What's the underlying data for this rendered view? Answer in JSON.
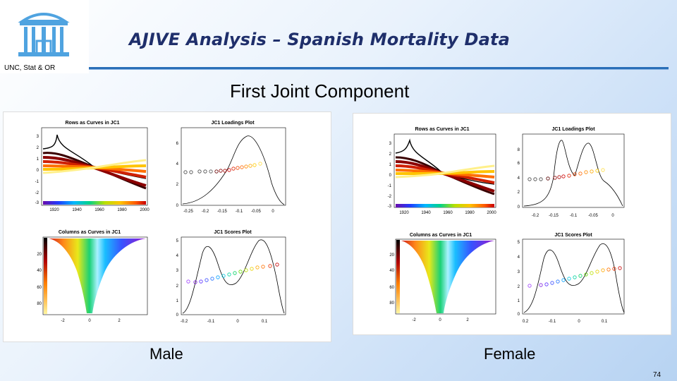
{
  "header": {
    "title": "AJIVE Analysis – Spanish Mortality Data",
    "org": "UNC, Stat & OR"
  },
  "subtitle": "First Joint Component",
  "panels": {
    "male": {
      "label": "Male",
      "rows_title": "Rows as Curves in JC1",
      "loadings_title": "JC1 Loadings Plot",
      "columns_title": "Columns as Curves in JC1",
      "scores_title": "JC1 Scores Plot",
      "rows_yticks": [
        "3",
        "2",
        "1",
        "0",
        "-1",
        "-2",
        "-3"
      ],
      "rows_xticks": [
        "1920",
        "1940",
        "1960",
        "1980",
        "2000"
      ],
      "loadings_yticks": [
        "6",
        "4",
        "2",
        "0"
      ],
      "loadings_xticks": [
        "-0.25",
        "-0.2",
        "-0.15",
        "-0.1",
        "-0.05",
        "0"
      ],
      "columns_yticks": [
        "20",
        "40",
        "60",
        "80"
      ],
      "columns_xticks": [
        "-2",
        "0",
        "2"
      ],
      "scores_yticks": [
        "5",
        "4",
        "3",
        "2",
        "1",
        "0"
      ],
      "scores_xticks": [
        "-0.2",
        "-0.1",
        "0",
        "0.1"
      ]
    },
    "female": {
      "label": "Female",
      "rows_title": "Rows as Curves in JC1",
      "loadings_title": "JC1 Loadings Plot",
      "columns_title": "Columns as Curves in JC1",
      "scores_title": "JC1 Scores Plot",
      "rows_yticks": [
        "3",
        "2",
        "1",
        "0",
        "-1",
        "-2",
        "-3"
      ],
      "rows_xticks": [
        "1920",
        "1940",
        "1960",
        "1980",
        "2000"
      ],
      "loadings_yticks": [
        "8",
        "6",
        "4",
        "2",
        "0"
      ],
      "loadings_xticks": [
        "-0.2",
        "-0.15",
        "-0.1",
        "-0.05",
        "0"
      ],
      "columns_yticks": [
        "20",
        "40",
        "60",
        "80"
      ],
      "columns_xticks": [
        "-2",
        "0",
        "2"
      ],
      "scores_yticks": [
        "5",
        "4",
        "3",
        "2",
        "1",
        "0"
      ],
      "scores_xticks": [
        "0.2",
        "-0.1",
        "0",
        "0.1"
      ]
    }
  },
  "page_number": "74"
}
